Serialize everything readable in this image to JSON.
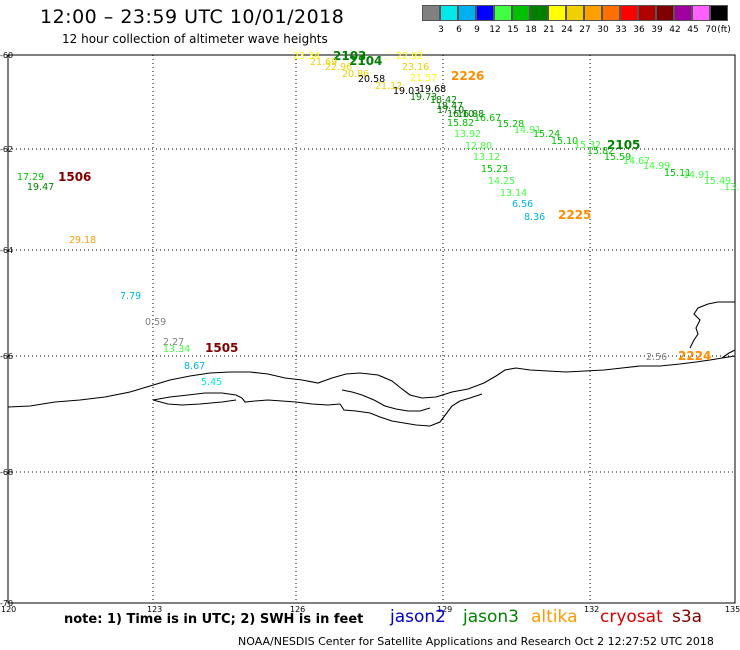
{
  "header": {
    "title": "12:00 – 23:59 UTC 10/01/2018",
    "subtitle": "12 hour collection of altimeter wave heights"
  },
  "scale": {
    "values": [
      "3",
      "6",
      "9",
      "12",
      "15",
      "18",
      "21",
      "24",
      "27",
      "30",
      "33",
      "36",
      "39",
      "42",
      "45",
      "70"
    ],
    "unit": "(ft)",
    "colors": [
      "#808080",
      "#00e8e8",
      "#00b0f0",
      "#0000ff",
      "#40ff40",
      "#00c000",
      "#008000",
      "#ffff00",
      "#f0d000",
      "#ffa000",
      "#ff7000",
      "#ff0000",
      "#b00000",
      "#800000",
      "#a000a0",
      "#ff60ff",
      "#000000"
    ]
  },
  "map": {
    "lat_labels": [
      "-60",
      "-62",
      "-64",
      "-66",
      "-68",
      "-70"
    ],
    "lon_labels": [
      "120",
      "123",
      "126",
      "129",
      "132",
      "135"
    ]
  },
  "pass_ids": [
    {
      "text": "2103",
      "color": "#008000"
    },
    {
      "text": "2104",
      "color": "#008000"
    },
    {
      "text": "2226",
      "color": "#ff8c00"
    },
    {
      "text": "1506",
      "color": "#800000"
    },
    {
      "text": "2105",
      "color": "#008000"
    },
    {
      "text": "2225",
      "color": "#ff8c00"
    },
    {
      "text": "1505",
      "color": "#800000"
    },
    {
      "text": "2224",
      "color": "#ff8c00"
    }
  ],
  "wave_labels": [
    {
      "text": "23.34",
      "color": "#ffff00"
    },
    {
      "text": "21.69",
      "color": "#f0d000"
    },
    {
      "text": "22.96",
      "color": "#f0d000"
    },
    {
      "text": "20.86",
      "color": "#f0d000"
    },
    {
      "text": "20.58",
      "color": "#000000"
    },
    {
      "text": "22.92",
      "color": "#ffff00"
    },
    {
      "text": "23.16",
      "color": "#f0d000"
    },
    {
      "text": "21.57",
      "color": "#ffff00"
    },
    {
      "text": "21.12",
      "color": "#f0d000"
    },
    {
      "text": "19.03",
      "color": "#000000"
    },
    {
      "text": "19.68",
      "color": "#000000"
    },
    {
      "text": "19.73",
      "color": "#008000"
    },
    {
      "text": "18.42",
      "color": "#008000"
    },
    {
      "text": "18.47",
      "color": "#008000"
    },
    {
      "text": "17.10",
      "color": "#008000"
    },
    {
      "text": "16.10",
      "color": "#008000"
    },
    {
      "text": "16.88",
      "color": "#008000"
    },
    {
      "text": "16.67",
      "color": "#00c000"
    },
    {
      "text": "15.82",
      "color": "#00c000"
    },
    {
      "text": "15.28",
      "color": "#00c000"
    },
    {
      "text": "14.91",
      "color": "#40ff40"
    },
    {
      "text": "15.24",
      "color": "#00c000"
    },
    {
      "text": "13.92",
      "color": "#40ff40"
    },
    {
      "text": "15.10",
      "color": "#00c000"
    },
    {
      "text": "15.32",
      "color": "#40ff40"
    },
    {
      "text": "15.82",
      "color": "#00c000"
    },
    {
      "text": "12.80",
      "color": "#40ff40"
    },
    {
      "text": "15.59",
      "color": "#00c000"
    },
    {
      "text": "14.67",
      "color": "#40ff40"
    },
    {
      "text": "14.99",
      "color": "#40ff40"
    },
    {
      "text": "15.11",
      "color": "#00c000"
    },
    {
      "text": "13.12",
      "color": "#40ff40"
    },
    {
      "text": "14.91",
      "color": "#40ff40"
    },
    {
      "text": "15.49",
      "color": "#40ff40"
    },
    {
      "text": "13.",
      "color": "#40ff40"
    },
    {
      "text": "15.23",
      "color": "#00c000"
    },
    {
      "text": "14.25",
      "color": "#40ff40"
    },
    {
      "text": "13.14",
      "color": "#40ff40"
    },
    {
      "text": "6.56",
      "color": "#00b0f0"
    },
    {
      "text": "8.36",
      "color": "#00b0f0"
    },
    {
      "text": "17.29",
      "color": "#00c000"
    },
    {
      "text": "19.47",
      "color": "#008000"
    },
    {
      "text": "29.18",
      "color": "#ffa000"
    },
    {
      "text": "7.79",
      "color": "#00b0f0"
    },
    {
      "text": "0.59",
      "color": "#808080"
    },
    {
      "text": "2.27",
      "color": "#808080"
    },
    {
      "text": "13.34",
      "color": "#40ff40"
    },
    {
      "text": "8.67",
      "color": "#00b0f0"
    },
    {
      "text": "5.45",
      "color": "#00e8e8"
    },
    {
      "text": "2.56",
      "color": "#808080"
    }
  ],
  "footer": {
    "note": "note: 1) Time is in UTC; 2) SWH is in feet",
    "satellites": [
      {
        "name": "jason2",
        "color": "#0000cc"
      },
      {
        "name": "jason3",
        "color": "#008000"
      },
      {
        "name": "altika",
        "color": "#ff9900"
      },
      {
        "name": "cryosat",
        "color": "#dd0000"
      },
      {
        "name": "s3a",
        "color": "#800000"
      }
    ],
    "credit": "NOAA/NESDIS Center for Satellite Applications and Research    Oct  2 12:27:52 UTC 2018"
  }
}
